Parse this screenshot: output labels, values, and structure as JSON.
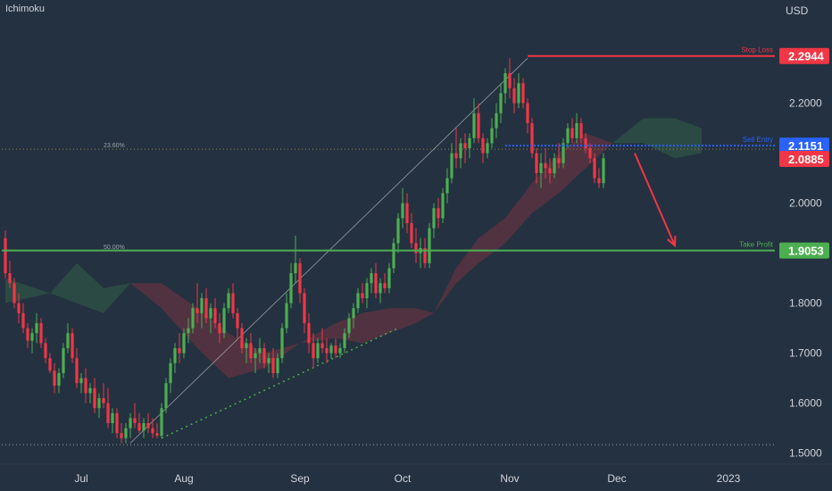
{
  "header": {
    "indicator": "Ichimoku",
    "currency": "USD"
  },
  "chart_data": {
    "type": "candlestick",
    "instrument_currency": "USD",
    "ylim": [
      1.48,
      2.39
    ],
    "y_ticks": [
      {
        "value": 1.5,
        "label": "1.5000"
      },
      {
        "value": 1.6,
        "label": "1.6000"
      },
      {
        "value": 1.7,
        "label": "1.7000"
      },
      {
        "value": 1.8,
        "label": "1.8000"
      },
      {
        "value": 2.0,
        "label": "2.0000"
      },
      {
        "value": 2.2,
        "label": "2.2000"
      }
    ],
    "x_ticks": [
      {
        "index": 17,
        "label": "Jul"
      },
      {
        "index": 40,
        "label": "Aug"
      },
      {
        "index": 66,
        "label": "Sep"
      },
      {
        "index": 89,
        "label": "Oct"
      },
      {
        "index": 113,
        "label": "Nov"
      },
      {
        "index": 137,
        "label": "Dec"
      },
      {
        "index": 162,
        "label": "2023"
      }
    ],
    "levels": [
      {
        "name": "Stop Loss",
        "value": 2.2944,
        "label": "2.2944",
        "color": "#f23645"
      },
      {
        "name": "Sell Entry",
        "value": 2.1151,
        "label": "2.1151",
        "color": "#2962ff"
      },
      {
        "name": "Take Profit",
        "value": 1.9053,
        "label": "1.9053",
        "color": "#4caf50"
      }
    ],
    "last_price": {
      "value": 2.0885,
      "label": "2.0885",
      "color": "#f23645"
    },
    "fibonacci": {
      "from": {
        "index": 28,
        "value": 1.52
      },
      "to": {
        "index": 117,
        "value": 2.29
      },
      "lines": [
        {
          "label": "23.60%",
          "value": 2.108
        },
        {
          "label": "50.00%",
          "value": 1.905
        }
      ]
    },
    "trendline_support": {
      "from": {
        "index": 35,
        "value": 1.53
      },
      "to": {
        "index": 88,
        "value": 1.75
      }
    },
    "projection_arrow": {
      "from": {
        "index": 141,
        "value": 2.1
      },
      "to": {
        "index": 150,
        "value": 1.915
      }
    },
    "candles": [
      [
        1.93,
        1.945,
        1.85,
        1.86
      ],
      [
        1.86,
        1.885,
        1.83,
        1.84
      ],
      [
        1.84,
        1.85,
        1.79,
        1.8
      ],
      [
        1.8,
        1.82,
        1.76,
        1.78
      ],
      [
        1.78,
        1.8,
        1.74,
        1.75
      ],
      [
        1.75,
        1.76,
        1.71,
        1.725
      ],
      [
        1.725,
        1.75,
        1.7,
        1.74
      ],
      [
        1.74,
        1.78,
        1.72,
        1.76
      ],
      [
        1.76,
        1.77,
        1.71,
        1.72
      ],
      [
        1.72,
        1.73,
        1.68,
        1.69
      ],
      [
        1.69,
        1.7,
        1.66,
        1.665
      ],
      [
        1.665,
        1.68,
        1.62,
        1.635
      ],
      [
        1.635,
        1.67,
        1.62,
        1.66
      ],
      [
        1.66,
        1.72,
        1.65,
        1.71
      ],
      [
        1.71,
        1.76,
        1.7,
        1.74
      ],
      [
        1.74,
        1.75,
        1.68,
        1.69
      ],
      [
        1.69,
        1.71,
        1.63,
        1.64
      ],
      [
        1.64,
        1.66,
        1.62,
        1.65
      ],
      [
        1.65,
        1.67,
        1.6,
        1.62
      ],
      [
        1.62,
        1.64,
        1.6,
        1.63
      ],
      [
        1.63,
        1.65,
        1.58,
        1.59
      ],
      [
        1.59,
        1.62,
        1.57,
        1.61
      ],
      [
        1.61,
        1.64,
        1.59,
        1.6
      ],
      [
        1.6,
        1.63,
        1.55,
        1.56
      ],
      [
        1.56,
        1.59,
        1.54,
        1.58
      ],
      [
        1.58,
        1.59,
        1.53,
        1.54
      ],
      [
        1.54,
        1.56,
        1.52,
        1.53
      ],
      [
        1.53,
        1.56,
        1.52,
        1.55
      ],
      [
        1.55,
        1.58,
        1.53,
        1.57
      ],
      [
        1.57,
        1.6,
        1.55,
        1.56
      ],
      [
        1.56,
        1.58,
        1.54,
        1.545
      ],
      [
        1.545,
        1.57,
        1.53,
        1.56
      ],
      [
        1.56,
        1.58,
        1.54,
        1.55
      ],
      [
        1.55,
        1.57,
        1.53,
        1.54
      ],
      [
        1.54,
        1.56,
        1.53,
        1.535
      ],
      [
        1.535,
        1.6,
        1.53,
        1.59
      ],
      [
        1.59,
        1.65,
        1.58,
        1.64
      ],
      [
        1.64,
        1.69,
        1.62,
        1.68
      ],
      [
        1.68,
        1.72,
        1.66,
        1.71
      ],
      [
        1.71,
        1.74,
        1.68,
        1.7
      ],
      [
        1.7,
        1.75,
        1.69,
        1.74
      ],
      [
        1.74,
        1.77,
        1.72,
        1.75
      ],
      [
        1.75,
        1.8,
        1.74,
        1.79
      ],
      [
        1.79,
        1.84,
        1.76,
        1.78
      ],
      [
        1.78,
        1.82,
        1.75,
        1.81
      ],
      [
        1.81,
        1.83,
        1.76,
        1.77
      ],
      [
        1.77,
        1.8,
        1.74,
        1.79
      ],
      [
        1.79,
        1.81,
        1.75,
        1.76
      ],
      [
        1.76,
        1.78,
        1.72,
        1.74
      ],
      [
        1.74,
        1.8,
        1.73,
        1.79
      ],
      [
        1.79,
        1.83,
        1.78,
        1.82
      ],
      [
        1.82,
        1.84,
        1.77,
        1.78
      ],
      [
        1.78,
        1.79,
        1.73,
        1.75
      ],
      [
        1.75,
        1.76,
        1.7,
        1.71
      ],
      [
        1.71,
        1.73,
        1.68,
        1.72
      ],
      [
        1.72,
        1.74,
        1.68,
        1.69
      ],
      [
        1.69,
        1.71,
        1.66,
        1.7
      ],
      [
        1.7,
        1.73,
        1.68,
        1.71
      ],
      [
        1.71,
        1.72,
        1.67,
        1.68
      ],
      [
        1.68,
        1.7,
        1.66,
        1.69
      ],
      [
        1.69,
        1.71,
        1.65,
        1.66
      ],
      [
        1.66,
        1.7,
        1.65,
        1.69
      ],
      [
        1.69,
        1.76,
        1.68,
        1.75
      ],
      [
        1.75,
        1.82,
        1.74,
        1.8
      ],
      [
        1.8,
        1.88,
        1.79,
        1.86
      ],
      [
        1.86,
        1.935,
        1.84,
        1.88
      ],
      [
        1.88,
        1.89,
        1.8,
        1.82
      ],
      [
        1.82,
        1.83,
        1.74,
        1.76
      ],
      [
        1.76,
        1.78,
        1.7,
        1.72
      ],
      [
        1.72,
        1.74,
        1.67,
        1.69
      ],
      [
        1.69,
        1.73,
        1.68,
        1.72
      ],
      [
        1.72,
        1.75,
        1.7,
        1.71
      ],
      [
        1.71,
        1.73,
        1.68,
        1.7
      ],
      [
        1.7,
        1.72,
        1.69,
        1.715
      ],
      [
        1.715,
        1.73,
        1.69,
        1.7
      ],
      [
        1.7,
        1.72,
        1.69,
        1.71
      ],
      [
        1.71,
        1.75,
        1.7,
        1.74
      ],
      [
        1.74,
        1.78,
        1.73,
        1.77
      ],
      [
        1.77,
        1.8,
        1.75,
        1.79
      ],
      [
        1.79,
        1.83,
        1.78,
        1.82
      ],
      [
        1.82,
        1.84,
        1.8,
        1.81
      ],
      [
        1.81,
        1.85,
        1.79,
        1.84
      ],
      [
        1.84,
        1.87,
        1.82,
        1.86
      ],
      [
        1.86,
        1.88,
        1.81,
        1.82
      ],
      [
        1.82,
        1.85,
        1.8,
        1.84
      ],
      [
        1.84,
        1.86,
        1.82,
        1.83
      ],
      [
        1.83,
        1.88,
        1.82,
        1.87
      ],
      [
        1.87,
        1.93,
        1.86,
        1.92
      ],
      [
        1.92,
        1.98,
        1.9,
        1.97
      ],
      [
        1.97,
        2.03,
        1.95,
        2.0
      ],
      [
        2.0,
        2.02,
        1.94,
        1.96
      ],
      [
        1.96,
        1.98,
        1.91,
        1.92
      ],
      [
        1.92,
        1.95,
        1.88,
        1.9
      ],
      [
        1.9,
        1.93,
        1.87,
        1.91
      ],
      [
        1.91,
        1.93,
        1.87,
        1.88
      ],
      [
        1.88,
        1.96,
        1.87,
        1.95
      ],
      [
        1.95,
        2.0,
        1.93,
        1.99
      ],
      [
        1.99,
        2.01,
        1.95,
        1.97
      ],
      [
        1.97,
        2.03,
        1.96,
        2.02
      ],
      [
        2.02,
        2.07,
        2.0,
        2.05
      ],
      [
        2.05,
        2.12,
        2.04,
        2.1
      ],
      [
        2.1,
        2.15,
        2.07,
        2.09
      ],
      [
        2.09,
        2.13,
        2.07,
        2.12
      ],
      [
        2.12,
        2.14,
        2.08,
        2.11
      ],
      [
        2.11,
        2.14,
        2.09,
        2.13
      ],
      [
        2.13,
        2.21,
        2.12,
        2.18
      ],
      [
        2.18,
        2.2,
        2.12,
        2.13
      ],
      [
        2.13,
        2.14,
        2.08,
        2.1
      ],
      [
        2.1,
        2.13,
        2.09,
        2.12
      ],
      [
        2.12,
        2.17,
        2.11,
        2.15
      ],
      [
        2.15,
        2.2,
        2.13,
        2.18
      ],
      [
        2.18,
        2.24,
        2.16,
        2.22
      ],
      [
        2.22,
        2.27,
        2.2,
        2.26
      ],
      [
        2.26,
        2.29,
        2.21,
        2.23
      ],
      [
        2.23,
        2.25,
        2.18,
        2.2
      ],
      [
        2.2,
        2.26,
        2.19,
        2.24
      ],
      [
        2.24,
        2.25,
        2.19,
        2.2
      ],
      [
        2.2,
        2.21,
        2.14,
        2.16
      ],
      [
        2.16,
        2.17,
        2.09,
        2.1
      ],
      [
        2.1,
        2.11,
        2.04,
        2.06
      ],
      [
        2.06,
        2.1,
        2.03,
        2.08
      ],
      [
        2.08,
        2.11,
        2.05,
        2.07
      ],
      [
        2.07,
        2.09,
        2.04,
        2.06
      ],
      [
        2.06,
        2.1,
        2.05,
        2.09
      ],
      [
        2.09,
        2.12,
        2.07,
        2.08
      ],
      [
        2.08,
        2.13,
        2.07,
        2.12
      ],
      [
        2.12,
        2.16,
        2.11,
        2.15
      ],
      [
        2.15,
        2.17,
        2.12,
        2.13
      ],
      [
        2.13,
        2.18,
        2.12,
        2.16
      ],
      [
        2.16,
        2.17,
        2.12,
        2.13
      ],
      [
        2.13,
        2.14,
        2.1,
        2.11
      ],
      [
        2.11,
        2.12,
        2.08,
        2.09
      ],
      [
        2.09,
        2.1,
        2.04,
        2.05
      ],
      [
        2.05,
        2.07,
        2.03,
        2.04
      ],
      [
        2.04,
        2.1,
        2.03,
        2.09
      ]
    ],
    "cloud": [
      {
        "x": 0,
        "a": 1.85,
        "b": 1.8
      },
      {
        "x": 10,
        "a": 1.82,
        "b": 1.82
      },
      {
        "x": 16,
        "a": 1.88,
        "b": 1.8
      },
      {
        "x": 22,
        "a": 1.83,
        "b": 1.78
      },
      {
        "x": 28,
        "a": 1.84,
        "b": 1.84
      },
      {
        "x": 35,
        "a": 1.79,
        "b": 1.84
      },
      {
        "x": 43,
        "a": 1.71,
        "b": 1.79
      },
      {
        "x": 50,
        "a": 1.65,
        "b": 1.74
      },
      {
        "x": 58,
        "a": 1.67,
        "b": 1.7
      },
      {
        "x": 66,
        "a": 1.72,
        "b": 1.72
      },
      {
        "x": 74,
        "a": 1.73,
        "b": 1.76
      },
      {
        "x": 80,
        "a": 1.72,
        "b": 1.78
      },
      {
        "x": 86,
        "a": 1.74,
        "b": 1.79
      },
      {
        "x": 92,
        "a": 1.76,
        "b": 1.79
      },
      {
        "x": 96,
        "a": 1.78,
        "b": 1.78
      },
      {
        "x": 101,
        "a": 1.84,
        "b": 1.87
      },
      {
        "x": 106,
        "a": 1.88,
        "b": 1.93
      },
      {
        "x": 112,
        "a": 1.92,
        "b": 1.97
      },
      {
        "x": 118,
        "a": 1.98,
        "b": 2.04
      },
      {
        "x": 124,
        "a": 2.02,
        "b": 2.1
      },
      {
        "x": 130,
        "a": 2.07,
        "b": 2.14
      },
      {
        "x": 136,
        "a": 2.12,
        "b": 2.12
      },
      {
        "x": 143,
        "a": 2.17,
        "b": 2.12
      },
      {
        "x": 150,
        "a": 2.17,
        "b": 2.09
      },
      {
        "x": 156,
        "a": 2.15,
        "b": 2.1
      }
    ]
  }
}
